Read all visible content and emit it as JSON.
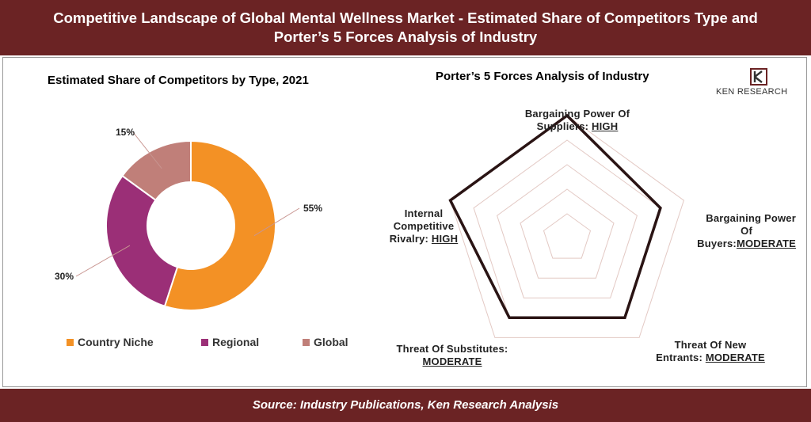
{
  "header": {
    "line1": "Competitive Landscape of Global Mental Wellness Market - Estimated Share of Competitors Type and",
    "line2": "Porter’s 5 Forces Analysis of Industry"
  },
  "footer": {
    "source": "Source: Industry Publications, Ken Research Analysis"
  },
  "logo": {
    "text": "KEN RESEARCH",
    "icon": "ken-research-k-icon"
  },
  "colors": {
    "header_bg": "#6b2324",
    "country_niche": "#f39125",
    "regional": "#9b2f77",
    "global": "#c07f79",
    "radar_line": "#2a1414",
    "radar_grid": "#e3c9c4"
  },
  "chart_data": [
    {
      "type": "pie",
      "title": "Estimated Share of Competitors by Type, 2021",
      "donut": true,
      "categories": [
        "Country Niche",
        "Regional",
        "Global"
      ],
      "values": [
        55,
        30,
        15
      ],
      "labels": [
        "55%",
        "30%",
        "15%"
      ],
      "legend_position": "bottom"
    },
    {
      "type": "radar",
      "title": "Porter’s 5 Forces Analysis of Industry",
      "scale": {
        "MODERATE": 4,
        "HIGH": 5,
        "max": 5
      },
      "axes": [
        {
          "name": "Bargaining Power Of Suppliers",
          "level": "HIGH",
          "value": 5
        },
        {
          "name": "Bargaining Power Of Buyers",
          "level": "MODERATE",
          "value": 4
        },
        {
          "name": "Threat Of New Entrants",
          "level": "MODERATE",
          "value": 4
        },
        {
          "name": "Threat Of Substitutes",
          "level": "MODERATE",
          "value": 4
        },
        {
          "name": "Internal Competitive Rivalry",
          "level": "HIGH",
          "value": 5
        }
      ]
    }
  ],
  "radar_labels": {
    "suppliers": {
      "line1": "Bargaining Power Of",
      "line2": "Suppliers: ",
      "level": "HIGH"
    },
    "buyers": {
      "line1": "Bargaining Power",
      "line2": "Of",
      "line3": "Buyers:",
      "level": "MODERATE"
    },
    "entrants": {
      "line1": "Threat Of New",
      "line2": "Entrants: ",
      "level": "MODERATE"
    },
    "substitutes": {
      "line1": "Threat Of Substitutes:",
      "level": "MODERATE"
    },
    "rivalry": {
      "line1": "Internal",
      "line2": "Competitive",
      "line3": "Rivalry: ",
      "level": "HIGH"
    }
  }
}
